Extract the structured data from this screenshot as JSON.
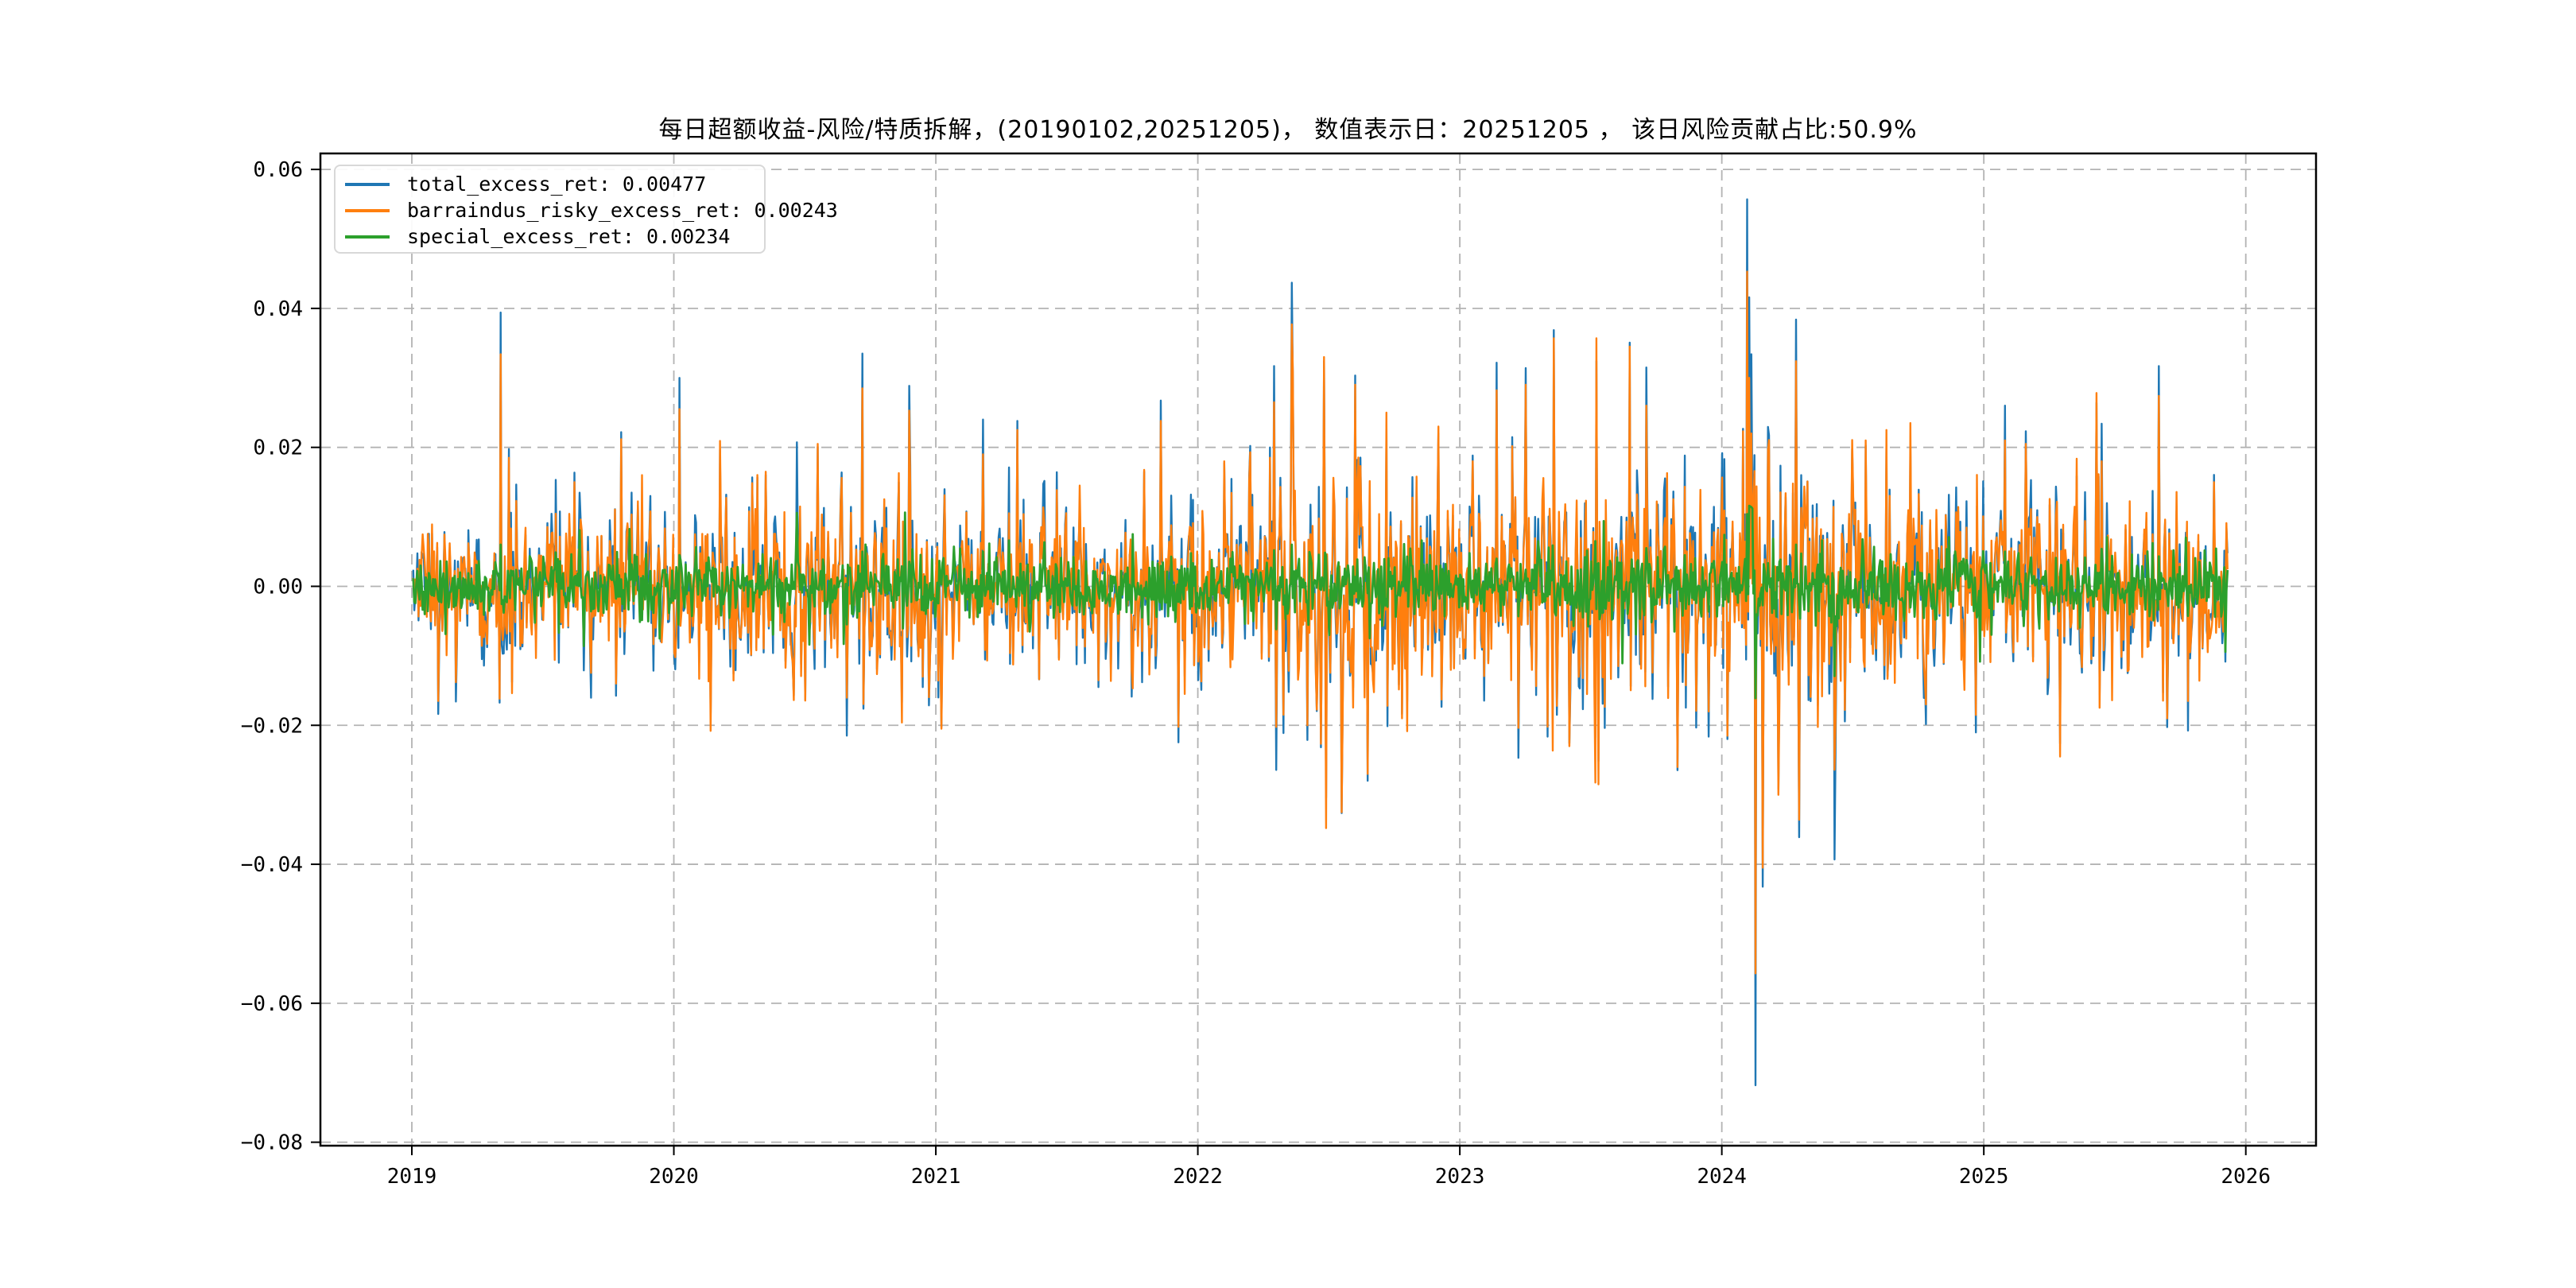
{
  "chart_data": {
    "type": "line",
    "title": "每日超额收益-风险/特质拆解，(20190102,20251205)， 数值表示日：20251205 ， 该日风险贡献占比:50.9%",
    "xlabel": "",
    "ylabel": "",
    "grid": true,
    "grid_color": "#b3b3b3",
    "spine_color": "#000000",
    "background_color": "#ffffff",
    "legend_position": "upper left",
    "seed": 20251205,
    "points_per_year": 252,
    "x_data_range": [
      2019.0055,
      2025.9288
    ],
    "x_axis": {
      "range": [
        2018.651,
        2026.268
      ],
      "ticks": [
        2019,
        2020,
        2021,
        2022,
        2023,
        2024,
        2025,
        2026
      ],
      "tick_labels": [
        "2019",
        "2020",
        "2021",
        "2022",
        "2023",
        "2024",
        "2025",
        "2026"
      ]
    },
    "y_axis": {
      "range": [
        -0.0805,
        0.0623
      ],
      "ticks": [
        0.06,
        0.04,
        0.02,
        0.0,
        -0.02,
        -0.04,
        -0.06,
        -0.08
      ],
      "tick_labels": [
        "0.06",
        "0.04",
        "0.02",
        "0.00",
        "−0.02",
        "−0.04",
        "−0.06",
        "−0.08"
      ]
    },
    "series": [
      {
        "name": "total_excess_ret",
        "legend_label": "total_excess_ret: 0.00477",
        "color": "#1f77b4",
        "last_value": 0.00477,
        "derived": "sum_of_risky_and_special",
        "observed_extremes": [
          [
            2024.095,
            0.0557
          ],
          [
            2024.13,
            -0.0718
          ]
        ]
      },
      {
        "name": "barraindus_risky_excess_ret",
        "legend_label": "barraindus_risky_excess_ret: 0.00243",
        "color": "#ff7f0e",
        "last_value": 0.00243,
        "sigma_envelope": [
          [
            2019.0,
            0.0046
          ],
          [
            2019.6,
            0.0052
          ],
          [
            2020.1,
            0.006
          ],
          [
            2020.75,
            0.0068
          ],
          [
            2021.1,
            0.0055
          ],
          [
            2021.7,
            0.005
          ],
          [
            2022.1,
            0.0062
          ],
          [
            2022.5,
            0.01
          ],
          [
            2022.75,
            0.0085
          ],
          [
            2023.1,
            0.0072
          ],
          [
            2023.45,
            0.0088
          ],
          [
            2023.8,
            0.0082
          ],
          [
            2024.05,
            0.007
          ],
          [
            2024.35,
            0.0085
          ],
          [
            2024.7,
            0.0062
          ],
          [
            2025.1,
            0.0055
          ],
          [
            2025.55,
            0.0066
          ],
          [
            2025.93,
            0.0058
          ]
        ],
        "spikes": [
          [
            2019.1,
            -0.0165
          ],
          [
            2019.34,
            0.0334
          ],
          [
            2019.37,
            0.0185
          ],
          [
            2019.62,
            0.015
          ],
          [
            2019.78,
            -0.014
          ],
          [
            2019.88,
            0.016
          ],
          [
            2020.02,
            0.0255
          ],
          [
            2020.14,
            -0.0208
          ],
          [
            2020.35,
            0.0165
          ],
          [
            2020.55,
            0.0205
          ],
          [
            2020.72,
            0.0285
          ],
          [
            2020.87,
            -0.0196
          ],
          [
            2020.9,
            0.0253
          ],
          [
            2021.02,
            -0.0205
          ],
          [
            2021.18,
            0.019
          ],
          [
            2021.31,
            0.0225
          ],
          [
            2021.55,
            0.0145
          ],
          [
            2021.62,
            -0.0135
          ],
          [
            2021.86,
            0.0238
          ],
          [
            2021.95,
            -0.0155
          ],
          [
            2022.1,
            0.018
          ],
          [
            2022.29,
            0.0265
          ],
          [
            2022.36,
            0.0377
          ],
          [
            2022.42,
            -0.02
          ],
          [
            2022.48,
            0.033
          ],
          [
            2022.49,
            -0.0348
          ],
          [
            2022.55,
            -0.0325
          ],
          [
            2022.6,
            0.029
          ],
          [
            2022.65,
            -0.027
          ],
          [
            2022.72,
            0.025
          ],
          [
            2022.78,
            -0.019
          ],
          [
            2022.92,
            0.023
          ],
          [
            2023.05,
            0.018
          ],
          [
            2023.14,
            0.0282
          ],
          [
            2023.25,
            0.029
          ],
          [
            2023.36,
            0.0357
          ],
          [
            2023.42,
            -0.023
          ],
          [
            2023.52,
            0.0357
          ],
          [
            2023.53,
            -0.0285
          ],
          [
            2023.65,
            0.0345
          ],
          [
            2023.71,
            0.026
          ],
          [
            2023.83,
            -0.026
          ],
          [
            2023.95,
            -0.018
          ],
          [
            2024.02,
            -0.0215
          ],
          [
            2024.095,
            0.0453
          ],
          [
            2024.103,
            0.03
          ],
          [
            2024.111,
            0.022
          ],
          [
            2024.119,
            0.012
          ],
          [
            2024.13,
            -0.0557
          ],
          [
            2024.158,
            -0.0405
          ],
          [
            2024.215,
            -0.03
          ],
          [
            2024.285,
            0.0324
          ],
          [
            2024.295,
            -0.0336
          ],
          [
            2024.43,
            -0.0264
          ],
          [
            2024.55,
            0.021
          ],
          [
            2024.63,
            0.0225
          ],
          [
            2024.72,
            0.0235
          ],
          [
            2024.78,
            -0.017
          ],
          [
            2024.97,
            -0.0185
          ],
          [
            2025.08,
            0.021
          ],
          [
            2025.16,
            0.0205
          ],
          [
            2025.29,
            -0.0245
          ],
          [
            2025.45,
            0.018
          ],
          [
            2025.67,
            0.0274
          ],
          [
            2025.7,
            -0.019
          ],
          [
            2025.78,
            -0.0165
          ],
          [
            2025.88,
            0.015
          ]
        ]
      },
      {
        "name": "special_excess_ret",
        "legend_label": "special_excess_ret: 0.00234",
        "color": "#2ca02c",
        "last_value": 0.00234,
        "sigma_envelope": [
          [
            2019.0,
            0.002
          ],
          [
            2020.5,
            0.0022
          ],
          [
            2022.0,
            0.0025
          ],
          [
            2023.5,
            0.0026
          ],
          [
            2024.2,
            0.0027
          ],
          [
            2025.93,
            0.0023
          ]
        ],
        "spikes": [
          [
            2019.05,
            -0.004
          ],
          [
            2019.34,
            0.006
          ],
          [
            2020.02,
            0.0045
          ],
          [
            2020.72,
            0.005
          ],
          [
            2021.18,
            0.005
          ],
          [
            2021.75,
            0.0075
          ],
          [
            2022.29,
            0.0052
          ],
          [
            2022.36,
            0.006
          ],
          [
            2022.5,
            -0.007
          ],
          [
            2023.3,
            0.0065
          ],
          [
            2023.71,
            0.0055
          ],
          [
            2024.095,
            0.0104
          ],
          [
            2024.105,
            0.0116
          ],
          [
            2024.109,
            0.0115
          ],
          [
            2024.113,
            0.0114
          ],
          [
            2024.118,
            0.0112
          ],
          [
            2024.13,
            -0.0161
          ],
          [
            2024.285,
            0.006
          ],
          [
            2024.295,
            -0.0025
          ],
          [
            2025.08,
            0.005
          ],
          [
            2025.77,
            0.007
          ]
        ]
      }
    ]
  }
}
